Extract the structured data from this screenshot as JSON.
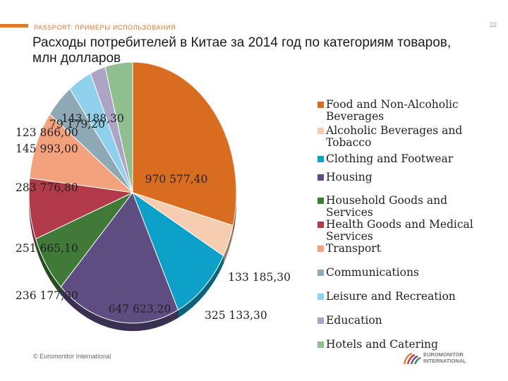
{
  "header": {
    "section_label": "PASSPORT: ПРИМЕРЫ ИСПОЛЬЗОВАНИЯ",
    "page_number": "22",
    "title": "Расходы потребителей в Китае за 2014 год по категориям товаров, млн долларов"
  },
  "footer": {
    "copyright": "© Euromonitor International",
    "logo_line1": "EUROMONITOR",
    "logo_line2": "INTERNATIONAL"
  },
  "colors": {
    "accent": "#e07b2e",
    "passport_text": "#d9752a"
  },
  "chart_data": {
    "type": "pie",
    "title": "",
    "slices": [
      {
        "name": "Food and Non-Alcoholic Beverages",
        "value": 970577.4,
        "label": "970 577,40",
        "color": "#d96d1f"
      },
      {
        "name": "Alcoholic Beverages and Tobacco",
        "value": 133185.3,
        "label": "133 185,30",
        "color": "#f6cdb0"
      },
      {
        "name": "Clothing and Footwear",
        "value": 325133.3,
        "label": "325 133,30",
        "color": "#0ca0c8"
      },
      {
        "name": "Housing",
        "value": 647623.2,
        "label": "647 623,20",
        "color": "#5d4d82"
      },
      {
        "name": "Household Goods and Services",
        "value": 236177.8,
        "label": "236 177,80",
        "color": "#3f7a36"
      },
      {
        "name": "Health Goods and Medical Services",
        "value": 251665.1,
        "label": "251 665,10",
        "color": "#b23a48"
      },
      {
        "name": "Transport",
        "value": 283776.8,
        "label": "283 776,80",
        "color": "#f4a27e"
      },
      {
        "name": "Communications",
        "value": 145993.0,
        "label": "145 993,00",
        "color": "#8ea8b5"
      },
      {
        "name": "Leisure and Recreation",
        "value": 123866.0,
        "label": "123 866,00",
        "color": "#8fd1ec"
      },
      {
        "name": "Education",
        "value": 79179.2,
        "label": "79 179,20",
        "color": "#aca4c4"
      },
      {
        "name": "Hotels and Catering",
        "value": 143188.3,
        "label": "143 188,30",
        "color": "#8fbf8f"
      }
    ],
    "legend_position": "right"
  }
}
